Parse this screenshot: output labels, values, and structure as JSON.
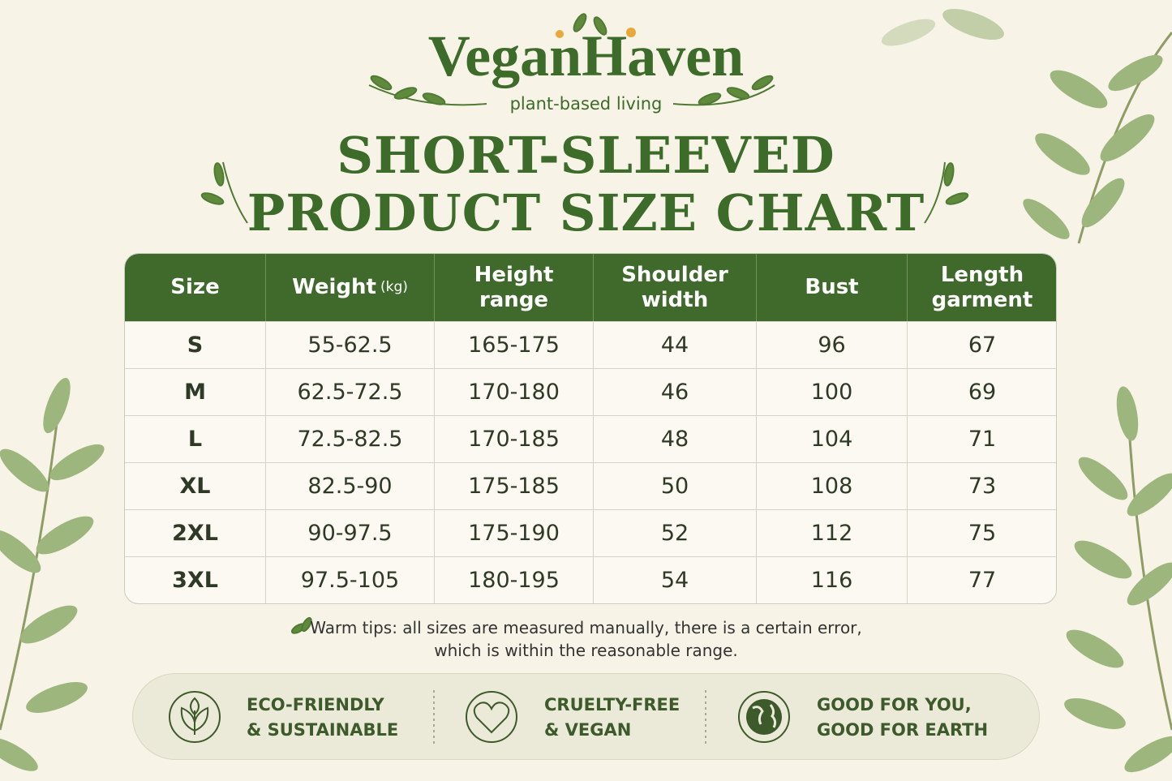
{
  "brand": {
    "name": "VeganHaven",
    "tagline": "plant-based living"
  },
  "title": [
    "SHORT-SLEEVED",
    "PRODUCT SIZE CHART"
  ],
  "table": {
    "headers": [
      "Size",
      "Weight",
      "Height range",
      "Shoulder width",
      "Bust",
      "Length garment"
    ],
    "weight_unit": "(kg)",
    "rows": [
      [
        "S",
        "55-62.5",
        "165-175",
        "44",
        "96",
        "67"
      ],
      [
        "M",
        "62.5-72.5",
        "170-180",
        "46",
        "100",
        "69"
      ],
      [
        "L",
        "72.5-82.5",
        "170-185",
        "48",
        "104",
        "71"
      ],
      [
        "XL",
        "82.5-90",
        "175-185",
        "50",
        "108",
        "73"
      ],
      [
        "2XL",
        "90-97.5",
        "175-190",
        "52",
        "112",
        "75"
      ],
      [
        "3XL",
        "97.5-105",
        "180-195",
        "54",
        "116",
        "77"
      ]
    ]
  },
  "tip": [
    "Warm tips: all sizes are measured manually, there is a certain error,",
    "which is within the reasonable range."
  ],
  "features": [
    [
      "ECO-FRIENDLY",
      "& SUSTAINABLE"
    ],
    [
      "CRUELTY-FREE",
      "& VEGAN"
    ],
    [
      "GOOD FOR YOU,",
      "GOOD FOR EARTH"
    ]
  ]
}
